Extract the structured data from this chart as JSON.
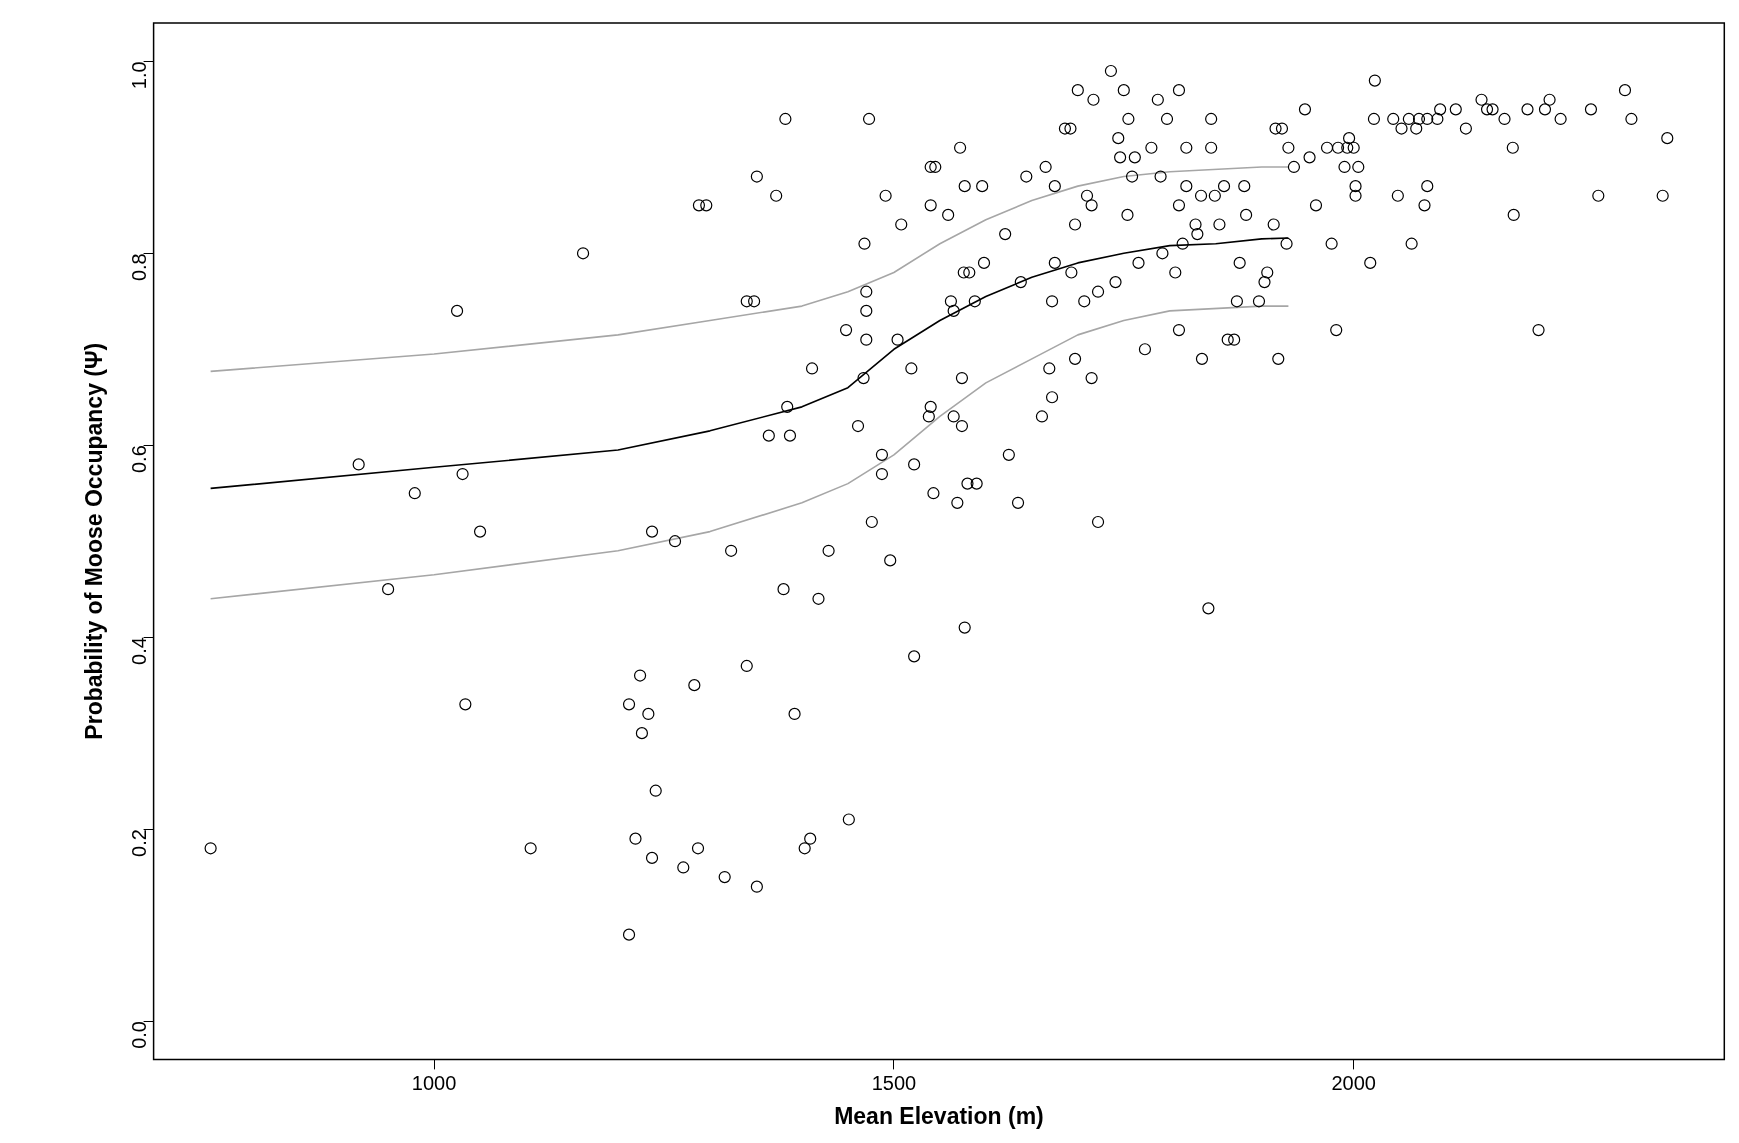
{
  "chart_data": {
    "type": "scatter",
    "xlabel": "Mean Elevation (m)",
    "ylabel": "Probability of Moose Occupancy (Ψ)",
    "xlim": [
      695,
      2403
    ],
    "ylim": [
      -0.04,
      1.04
    ],
    "xticks": [
      1000,
      1500,
      2000
    ],
    "yticks": [
      {
        "value": 0,
        "label": "0.0"
      },
      {
        "value": 0.2,
        "label": "0.2"
      },
      {
        "value": 0.4,
        "label": "0.4"
      },
      {
        "value": 0.6,
        "label": "0.6"
      },
      {
        "value": 0.8,
        "label": "0.8"
      },
      {
        "value": 1,
        "label": "1.0"
      }
    ],
    "grid": false,
    "legend": false,
    "series": [
      {
        "marker": "circle",
        "color": "#000000",
        "x": [
          757,
          918,
          979,
          950,
          1025,
          1031,
          1034,
          1050,
          1105,
          1162,
          1212,
          1212,
          1219,
          1224,
          1226,
          1233,
          1237,
          1237,
          1241,
          1262,
          1271,
          1283,
          1287,
          1288,
          1296,
          1316,
          1323,
          1340,
          1340,
          1348,
          1351,
          1351,
          1364,
          1372,
          1380,
          1382,
          1384,
          1387,
          1392,
          1403,
          1409,
          1411,
          1418,
          1429,
          1448,
          1451,
          1461,
          1467,
          1468,
          1470,
          1470,
          1470,
          1473,
          1476,
          1487,
          1487,
          1491,
          1496,
          1504,
          1508,
          1519,
          1522,
          1522,
          1538,
          1540,
          1540,
          1540,
          1545,
          1543,
          1559,
          1562,
          1565,
          1565,
          1569,
          1572,
          1574,
          1574,
          1577,
          1577,
          1576,
          1582,
          1580,
          1588,
          1590,
          1596,
          1598,
          1621,
          1625,
          1635,
          1638,
          1644,
          1661,
          1665,
          1669,
          1672,
          1672,
          1675,
          1675,
          1686,
          1692,
          1693,
          1697,
          1697,
          1700,
          1707,
          1710,
          1715,
          1715,
          1717,
          1722,
          1722,
          1736,
          1741,
          1744,
          1746,
          1750,
          1754,
          1755,
          1759,
          1762,
          1766,
          1773,
          1780,
          1787,
          1790,
          1792,
          1797,
          1806,
          1810,
          1810,
          1810,
          1814,
          1818,
          1818,
          1828,
          1830,
          1834,
          1835,
          1842,
          1845,
          1845,
          1849,
          1854,
          1859,
          1863,
          1870,
          1873,
          1876,
          1881,
          1883,
          1897,
          1903,
          1906,
          1913,
          1915,
          1918,
          1922,
          1927,
          1929,
          1935,
          1947,
          1952,
          1959,
          1971,
          1976,
          1981,
          1983,
          1990,
          1993,
          1995,
          2000,
          2002,
          2002,
          2005,
          2018,
          2022,
          2023,
          2043,
          2048,
          2052,
          2060,
          2063,
          2068,
          2071,
          2077,
          2080,
          2080,
          2091,
          2094,
          2111,
          2122,
          2139,
          2145,
          2151,
          2164,
          2173,
          2174,
          2189,
          2201,
          2208,
          2213,
          2225,
          2258,
          2266,
          2295,
          2302,
          2336,
          2341
        ],
        "values": [
          0.18,
          0.58,
          0.55,
          0.45,
          0.74,
          0.57,
          0.33,
          0.51,
          0.18,
          0.8,
          0.09,
          0.33,
          0.19,
          0.36,
          0.3,
          0.32,
          0.51,
          0.17,
          0.24,
          0.5,
          0.16,
          0.35,
          0.18,
          0.85,
          0.85,
          0.15,
          0.49,
          0.37,
          0.75,
          0.75,
          0.14,
          0.88,
          0.61,
          0.86,
          0.45,
          0.94,
          0.64,
          0.61,
          0.32,
          0.18,
          0.19,
          0.68,
          0.44,
          0.49,
          0.72,
          0.21,
          0.62,
          0.67,
          0.81,
          0.76,
          0.74,
          0.71,
          0.94,
          0.52,
          0.59,
          0.57,
          0.86,
          0.48,
          0.71,
          0.83,
          0.68,
          0.58,
          0.38,
          0.63,
          0.64,
          0.85,
          0.89,
          0.89,
          0.55,
          0.84,
          0.75,
          0.74,
          0.63,
          0.54,
          0.91,
          0.67,
          0.62,
          0.41,
          0.87,
          0.78,
          0.78,
          0.56,
          0.75,
          0.56,
          0.87,
          0.79,
          0.82,
          0.59,
          0.54,
          0.77,
          0.88,
          0.63,
          0.89,
          0.68,
          0.75,
          0.65,
          0.87,
          0.79,
          0.93,
          0.93,
          0.78,
          0.83,
          0.69,
          0.97,
          0.75,
          0.86,
          0.85,
          0.67,
          0.96,
          0.76,
          0.52,
          0.99,
          0.77,
          0.92,
          0.9,
          0.97,
          0.84,
          0.94,
          0.88,
          0.9,
          0.79,
          0.7,
          0.91,
          0.96,
          0.88,
          0.8,
          0.94,
          0.78,
          0.72,
          0.97,
          0.85,
          0.81,
          0.91,
          0.87,
          0.83,
          0.82,
          0.86,
          0.69,
          0.43,
          0.94,
          0.91,
          0.86,
          0.83,
          0.87,
          0.71,
          0.71,
          0.75,
          0.79,
          0.87,
          0.84,
          0.75,
          0.77,
          0.78,
          0.83,
          0.93,
          0.69,
          0.93,
          0.81,
          0.91,
          0.89,
          0.95,
          0.9,
          0.85,
          0.91,
          0.81,
          0.72,
          0.91,
          0.89,
          0.91,
          0.92,
          0.91,
          0.87,
          0.86,
          0.89,
          0.79,
          0.94,
          0.98,
          0.94,
          0.86,
          0.93,
          0.94,
          0.81,
          0.93,
          0.94,
          0.85,
          0.87,
          0.94,
          0.94,
          0.95,
          0.95,
          0.93,
          0.96,
          0.95,
          0.95,
          0.94,
          0.91,
          0.84,
          0.95,
          0.72,
          0.95,
          0.96,
          0.94,
          0.95,
          0.86,
          0.97,
          0.94,
          0.86,
          0.92
        ]
      },
      {
        "type": "line",
        "marker": "none",
        "color": "#000000",
        "x": [
          757,
          1000,
          1200,
          1300,
          1400,
          1450,
          1500,
          1550,
          1600,
          1650,
          1700,
          1750,
          1800,
          1850,
          1900,
          1929
        ],
        "values": [
          0.555,
          0.577,
          0.595,
          0.615,
          0.64,
          0.66,
          0.7,
          0.73,
          0.755,
          0.775,
          0.79,
          0.8,
          0.808,
          0.81,
          0.815,
          0.816
        ]
      },
      {
        "type": "line",
        "marker": "none",
        "color": "#a6a6a6",
        "x": [
          757,
          1000,
          1200,
          1300,
          1400,
          1450,
          1500,
          1550,
          1600,
          1650,
          1700,
          1750,
          1800,
          1900,
          1929
        ],
        "values": [
          0.677,
          0.695,
          0.715,
          0.73,
          0.745,
          0.76,
          0.78,
          0.81,
          0.835,
          0.855,
          0.87,
          0.88,
          0.885,
          0.89,
          0.89
        ]
      },
      {
        "type": "line",
        "marker": "none",
        "color": "#a6a6a6",
        "x": [
          757,
          1000,
          1200,
          1300,
          1400,
          1450,
          1500,
          1550,
          1600,
          1650,
          1700,
          1750,
          1800,
          1900,
          1929
        ],
        "values": [
          0.44,
          0.465,
          0.49,
          0.51,
          0.54,
          0.56,
          0.59,
          0.63,
          0.665,
          0.69,
          0.715,
          0.73,
          0.74,
          0.745,
          0.745
        ]
      }
    ]
  }
}
